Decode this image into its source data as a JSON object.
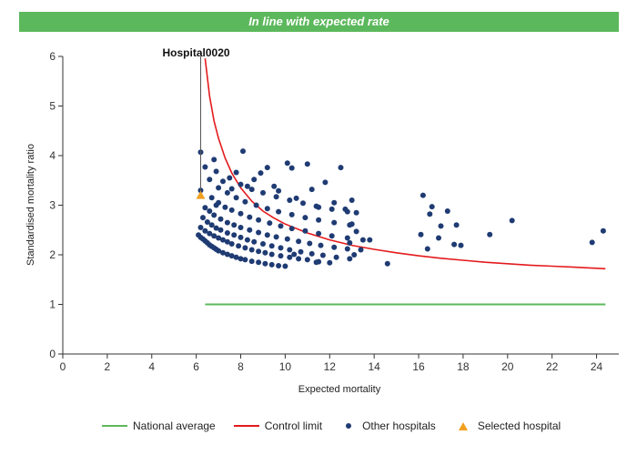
{
  "banner": {
    "text": "In line with expected rate"
  },
  "chart_data": {
    "type": "scatter",
    "title": "In line with expected rate",
    "xlabel": "Expected mortality",
    "ylabel": "Standardised mortality ratio",
    "xlim": [
      0,
      25
    ],
    "ylim": [
      0,
      6
    ],
    "xticks": [
      0,
      2,
      4,
      6,
      8,
      10,
      12,
      14,
      16,
      18,
      20,
      22,
      24
    ],
    "yticks": [
      0,
      1,
      2,
      3,
      4,
      5,
      6
    ],
    "grid": false,
    "legend_position": "bottom",
    "colors": {
      "national": "#5cb85c",
      "control": "#e41a1c",
      "others": "#1f3b73",
      "selected": "#f0a020"
    },
    "national_average": {
      "name": "National average",
      "y": 1,
      "x_range": [
        6.4,
        24.4
      ]
    },
    "control_limit": {
      "name": "Control limit",
      "points": [
        [
          6.4,
          5.96
        ],
        [
          6.6,
          5.2
        ],
        [
          6.8,
          4.7
        ],
        [
          7.0,
          4.35
        ],
        [
          7.3,
          3.95
        ],
        [
          7.6,
          3.65
        ],
        [
          8.0,
          3.35
        ],
        [
          8.5,
          3.08
        ],
        [
          9.0,
          2.88
        ],
        [
          9.5,
          2.74
        ],
        [
          10.0,
          2.62
        ],
        [
          11.0,
          2.44
        ],
        [
          12.0,
          2.3
        ],
        [
          13.0,
          2.19
        ],
        [
          14.0,
          2.11
        ],
        [
          15.0,
          2.04
        ],
        [
          16.0,
          1.98
        ],
        [
          17.0,
          1.93
        ],
        [
          18.0,
          1.89
        ],
        [
          19.0,
          1.85
        ],
        [
          20.0,
          1.82
        ],
        [
          21.0,
          1.79
        ],
        [
          22.0,
          1.77
        ],
        [
          23.0,
          1.75
        ],
        [
          24.4,
          1.72
        ]
      ]
    },
    "selected_hospital": {
      "name": "Selected hospital",
      "label": "Hospital0020",
      "x": 6.2,
      "y": 3.2
    },
    "other_hospitals": {
      "name": "Other hospitals",
      "points": [
        [
          6.1,
          2.4
        ],
        [
          6.2,
          2.35
        ],
        [
          6.3,
          2.32
        ],
        [
          6.4,
          2.28
        ],
        [
          6.5,
          2.24
        ],
        [
          6.6,
          2.2
        ],
        [
          6.7,
          2.17
        ],
        [
          6.8,
          2.14
        ],
        [
          6.9,
          2.11
        ],
        [
          7.0,
          2.08
        ],
        [
          7.2,
          2.04
        ],
        [
          7.4,
          2.01
        ],
        [
          7.6,
          1.98
        ],
        [
          7.8,
          1.95
        ],
        [
          8.0,
          1.92
        ],
        [
          8.2,
          1.9
        ],
        [
          8.5,
          1.87
        ],
        [
          8.8,
          1.85
        ],
        [
          9.1,
          1.82
        ],
        [
          9.4,
          1.8
        ],
        [
          9.7,
          1.78
        ],
        [
          10.0,
          1.77
        ],
        [
          6.2,
          2.55
        ],
        [
          6.4,
          2.48
        ],
        [
          6.6,
          2.43
        ],
        [
          6.8,
          2.38
        ],
        [
          7.0,
          2.34
        ],
        [
          7.2,
          2.3
        ],
        [
          7.4,
          2.26
        ],
        [
          7.6,
          2.22
        ],
        [
          7.9,
          2.18
        ],
        [
          8.2,
          2.14
        ],
        [
          8.5,
          2.1
        ],
        [
          8.8,
          2.07
        ],
        [
          9.1,
          2.04
        ],
        [
          9.4,
          2.01
        ],
        [
          9.8,
          1.98
        ],
        [
          10.2,
          1.95
        ],
        [
          10.6,
          1.92
        ],
        [
          11.0,
          1.9
        ],
        [
          11.5,
          1.86
        ],
        [
          12.0,
          1.84
        ],
        [
          6.3,
          2.75
        ],
        [
          6.5,
          2.66
        ],
        [
          6.7,
          2.6
        ],
        [
          6.9,
          2.54
        ],
        [
          7.1,
          2.5
        ],
        [
          7.4,
          2.44
        ],
        [
          7.7,
          2.4
        ],
        [
          8.0,
          2.35
        ],
        [
          8.3,
          2.3
        ],
        [
          8.6,
          2.26
        ],
        [
          9.0,
          2.22
        ],
        [
          9.4,
          2.18
        ],
        [
          9.8,
          2.14
        ],
        [
          10.2,
          2.1
        ],
        [
          10.7,
          2.06
        ],
        [
          11.2,
          2.02
        ],
        [
          11.7,
          1.99
        ],
        [
          12.3,
          1.95
        ],
        [
          12.9,
          1.92
        ],
        [
          6.4,
          2.95
        ],
        [
          6.6,
          2.88
        ],
        [
          6.8,
          2.8
        ],
        [
          7.1,
          2.72
        ],
        [
          7.4,
          2.65
        ],
        [
          7.7,
          2.6
        ],
        [
          8.0,
          2.55
        ],
        [
          8.4,
          2.5
        ],
        [
          8.8,
          2.45
        ],
        [
          9.2,
          2.4
        ],
        [
          9.6,
          2.36
        ],
        [
          10.1,
          2.32
        ],
        [
          10.6,
          2.27
        ],
        [
          11.1,
          2.23
        ],
        [
          11.6,
          2.19
        ],
        [
          12.2,
          2.15
        ],
        [
          12.8,
          2.12
        ],
        [
          13.4,
          2.1
        ],
        [
          6.7,
          3.15
        ],
        [
          7.0,
          3.05
        ],
        [
          7.3,
          2.96
        ],
        [
          7.6,
          2.9
        ],
        [
          8.0,
          2.83
        ],
        [
          8.4,
          2.76
        ],
        [
          8.8,
          2.7
        ],
        [
          9.3,
          2.64
        ],
        [
          9.8,
          2.58
        ],
        [
          10.3,
          2.53
        ],
        [
          10.9,
          2.48
        ],
        [
          11.5,
          2.43
        ],
        [
          12.1,
          2.38
        ],
        [
          12.8,
          2.34
        ],
        [
          13.5,
          2.3
        ],
        [
          7.0,
          3.35
        ],
        [
          7.4,
          3.25
        ],
        [
          7.8,
          3.15
        ],
        [
          8.2,
          3.07
        ],
        [
          8.7,
          3.0
        ],
        [
          9.2,
          2.93
        ],
        [
          9.7,
          2.87
        ],
        [
          10.3,
          2.81
        ],
        [
          10.9,
          2.75
        ],
        [
          11.5,
          2.7
        ],
        [
          12.2,
          2.65
        ],
        [
          12.9,
          2.6
        ],
        [
          7.5,
          3.55
        ],
        [
          8.0,
          3.42
        ],
        [
          8.5,
          3.32
        ],
        [
          9.0,
          3.25
        ],
        [
          9.6,
          3.17
        ],
        [
          10.2,
          3.1
        ],
        [
          10.8,
          3.04
        ],
        [
          11.4,
          2.98
        ],
        [
          12.1,
          2.92
        ],
        [
          12.8,
          2.87
        ],
        [
          6.2,
          4.07
        ],
        [
          6.4,
          3.77
        ],
        [
          6.6,
          3.52
        ],
        [
          6.8,
          3.92
        ],
        [
          6.9,
          3.68
        ],
        [
          7.2,
          3.48
        ],
        [
          7.6,
          3.33
        ],
        [
          7.8,
          3.66
        ],
        [
          8.1,
          4.09
        ],
        [
          8.3,
          3.38
        ],
        [
          8.6,
          3.52
        ],
        [
          8.9,
          3.65
        ],
        [
          9.2,
          3.76
        ],
        [
          9.5,
          3.38
        ],
        [
          9.7,
          3.29
        ],
        [
          10.1,
          3.85
        ],
        [
          10.3,
          3.75
        ],
        [
          10.5,
          3.14
        ],
        [
          11.0,
          3.83
        ],
        [
          11.2,
          3.32
        ],
        [
          11.5,
          2.96
        ],
        [
          11.8,
          3.46
        ],
        [
          12.5,
          3.76
        ],
        [
          12.2,
          3.05
        ],
        [
          12.7,
          2.92
        ],
        [
          13.0,
          3.1
        ],
        [
          13.2,
          2.85
        ],
        [
          13.0,
          2.62
        ],
        [
          13.2,
          2.47
        ],
        [
          12.9,
          2.24
        ],
        [
          13.1,
          2.0
        ],
        [
          13.8,
          2.3
        ],
        [
          14.6,
          1.82
        ],
        [
          11.4,
          1.85
        ],
        [
          10.4,
          2.01
        ],
        [
          6.2,
          3.3
        ],
        [
          6.9,
          3.0
        ],
        [
          16.1,
          2.41
        ],
        [
          16.2,
          3.2
        ],
        [
          16.4,
          2.12
        ],
        [
          16.5,
          2.82
        ],
        [
          16.6,
          2.97
        ],
        [
          16.9,
          2.34
        ],
        [
          17.0,
          2.58
        ],
        [
          17.3,
          2.88
        ],
        [
          17.6,
          2.21
        ],
        [
          17.7,
          2.6
        ],
        [
          17.9,
          2.19
        ],
        [
          19.2,
          2.41
        ],
        [
          20.2,
          2.69
        ],
        [
          23.8,
          2.25
        ],
        [
          24.3,
          2.48
        ]
      ]
    }
  },
  "legend": {
    "national": "National average",
    "control": "Control limit",
    "others": "Other hospitals",
    "selected": "Selected hospital"
  }
}
